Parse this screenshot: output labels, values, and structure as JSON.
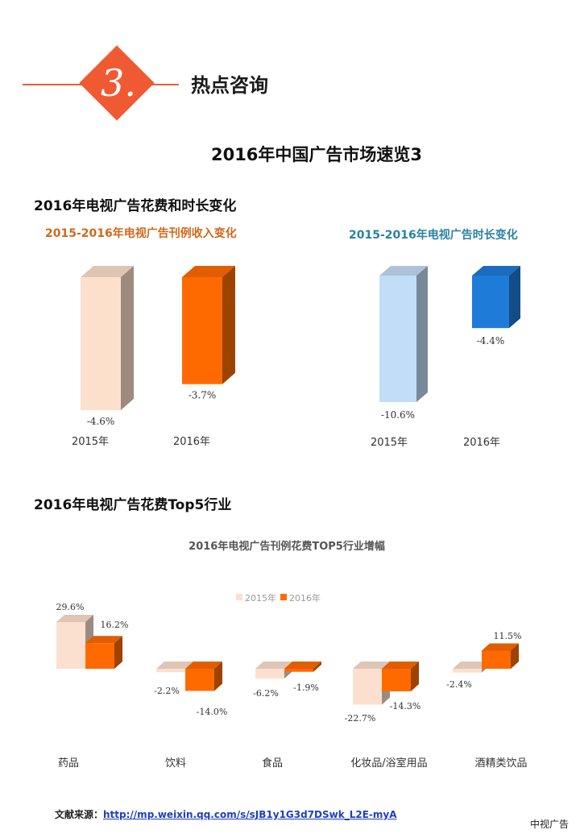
{
  "header": {
    "number": "3.",
    "title": "热点咨询"
  },
  "page_title": "2016年中国广告市场速览3",
  "section1": {
    "heading": "2016年电视广告花费和时长变化"
  },
  "section2": {
    "heading": "2016年电视广告花费Top5行业"
  },
  "colors": {
    "accent": "#f05a32",
    "bar_2015_spend": "#fde0cc",
    "bar_2016_spend": "#ff6a00",
    "bar_2015_duration": "#c2ddf7",
    "bar_2016_duration": "#1f7bd8",
    "series_2015": "#fce0cf",
    "series_2016": "#ff6a00"
  },
  "chart_data": [
    {
      "type": "bar",
      "title": "2015-2016年电视广告刊例收入变化",
      "categories": [
        "2015年",
        "2016年"
      ],
      "values": [
        -4.6,
        -3.7
      ],
      "value_labels": [
        "-4.6%",
        "-3.7%"
      ]
    },
    {
      "type": "bar",
      "title": "2015-2016年电视广告时长变化",
      "categories": [
        "2015年",
        "2016年"
      ],
      "values": [
        -10.6,
        -4.4
      ],
      "value_labels": [
        "-10.6%",
        "-4.4%"
      ]
    },
    {
      "type": "bar",
      "title": "2016年电视广告刊例花费TOP5行业增幅",
      "categories": [
        "药品",
        "饮料",
        "食品",
        "化妆品/浴室用品",
        "酒精类饮品"
      ],
      "series": [
        {
          "name": "2015年",
          "values": [
            29.6,
            -2.2,
            -6.2,
            -22.7,
            -2.4
          ],
          "labels": [
            "29.6%",
            "-2.2%",
            "-6.2%",
            "-22.7%",
            "-2.4%"
          ]
        },
        {
          "name": "2016年",
          "values": [
            16.2,
            -14.0,
            -1.9,
            -14.3,
            11.5
          ],
          "labels": [
            "16.2%",
            "-14.0%",
            "-1.9%",
            "-14.3%",
            "11.5%"
          ]
        }
      ],
      "legend": "top-center"
    }
  ],
  "footer": {
    "source_label": "文献来源：",
    "source_url": "http://mp.weixin.qq.com/s/sJB1y1G3d7DSwk_L2E-myA",
    "brand": "中视广告"
  }
}
